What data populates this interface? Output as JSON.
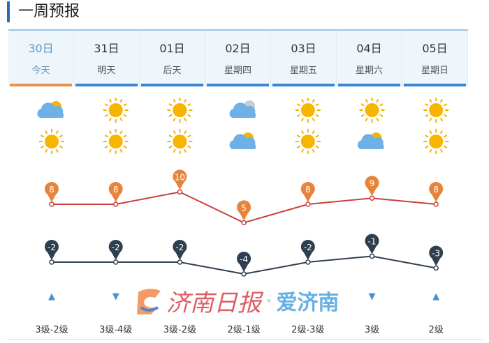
{
  "title": "一周预报",
  "days": [
    {
      "date": "30日",
      "label": "今天",
      "icon_day": "partly-cloudy-icon",
      "icon_night": "sunny-icon",
      "high": 8,
      "low": -2,
      "wind_dir": "up",
      "wind": "3级-2级"
    },
    {
      "date": "31日",
      "label": "明天",
      "icon_day": "sunny-icon",
      "icon_night": "sunny-icon",
      "high": 8,
      "low": -2,
      "wind_dir": "down",
      "wind": "3级-4级"
    },
    {
      "date": "01日",
      "label": "后天",
      "icon_day": "sunny-icon",
      "icon_night": "sunny-icon",
      "high": 10,
      "low": -2,
      "wind_dir": "",
      "wind": "3级-2级"
    },
    {
      "date": "02日",
      "label": "星期四",
      "icon_day": "cloudy-icon",
      "icon_night": "partly-cloudy-icon",
      "high": 5,
      "low": -4,
      "wind_dir": "",
      "wind": "2级-1级"
    },
    {
      "date": "03日",
      "label": "星期五",
      "icon_day": "sunny-icon",
      "icon_night": "sunny-icon",
      "high": 8,
      "low": -2,
      "wind_dir": "",
      "wind": "2级-3级"
    },
    {
      "date": "04日",
      "label": "星期六",
      "icon_day": "sunny-icon",
      "icon_night": "partly-cloudy-icon",
      "high": 9,
      "low": -1,
      "wind_dir": "down",
      "wind": "3级"
    },
    {
      "date": "05日",
      "label": "星期日",
      "icon_day": "sunny-icon",
      "icon_night": "sunny-icon",
      "high": 8,
      "low": -3,
      "wind_dir": "up",
      "wind": "2级"
    }
  ],
  "colors": {
    "high": "#e8833a",
    "high_line": "#c9423a",
    "low": "#2f3f4f",
    "accent": "#3b86d4",
    "active": "#e8924a"
  },
  "watermark": {
    "name": "济南日报",
    "app": "爱济南"
  }
}
